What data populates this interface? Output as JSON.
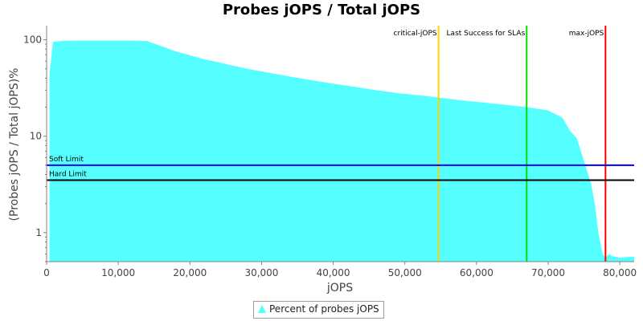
{
  "chart_data": {
    "type": "area",
    "title": "Probes jOPS / Total jOPS",
    "xlabel": "jOPS",
    "ylabel": "(Probes jOPS / Total jOPS)%",
    "xlim": [
      0,
      82000
    ],
    "ylim": [
      0.5,
      140
    ],
    "yscale": "log",
    "grid": false,
    "legend_position": "bottom-center",
    "x_ticks": [
      0,
      10000,
      20000,
      30000,
      40000,
      50000,
      60000,
      70000,
      80000
    ],
    "x_tick_labels": [
      "0",
      "10,000",
      "20,000",
      "30,000",
      "40,000",
      "50,000",
      "60,000",
      "70,000",
      "80,000"
    ],
    "y_ticks": [
      1,
      10,
      100
    ],
    "y_tick_labels": [
      "1",
      "10",
      "100"
    ],
    "series": [
      {
        "name": "Percent of probes jOPS",
        "color": "#55ffff",
        "x": [
          400,
          900,
          2000,
          4000,
          8000,
          12000,
          14000,
          16000,
          18000,
          20000,
          22000,
          25000,
          28000,
          31000,
          34000,
          37000,
          40000,
          43000,
          46000,
          49000,
          52000,
          55000,
          58000,
          61000,
          64000,
          67000,
          70000,
          72000,
          73000,
          74000,
          75000,
          76000,
          76500,
          77000,
          77600,
          78000,
          78500,
          79000,
          80000,
          81000,
          82000
        ],
        "y": [
          45,
          95,
          97,
          98,
          98,
          98,
          97,
          86,
          76,
          69,
          63,
          56,
          50,
          45.5,
          41.5,
          38,
          35,
          32.5,
          30,
          28,
          26.5,
          25,
          23.5,
          22.3,
          21.2,
          20,
          18.5,
          15.5,
          11.5,
          9.5,
          5.5,
          3.2,
          2,
          1,
          0.6,
          0.55,
          0.6,
          0.57,
          0.55,
          0.56,
          0.56
        ]
      }
    ],
    "vertical_markers": [
      {
        "label": "critical-jOPS",
        "x": 54700,
        "color": "#ffd200"
      },
      {
        "label": "Last Success for SLAs",
        "x": 67000,
        "color": "#00e000"
      },
      {
        "label": "max-jOPS",
        "x": 78000,
        "color": "#ff0000"
      }
    ],
    "horizontal_markers": [
      {
        "label": "Soft Limit",
        "y": 5,
        "color": "#0000ff"
      },
      {
        "label": "Hard Limit",
        "y": 3.5,
        "color": "#000000"
      }
    ]
  },
  "legend": {
    "entry": "Percent of probes jOPS",
    "color": "#55ffff"
  }
}
